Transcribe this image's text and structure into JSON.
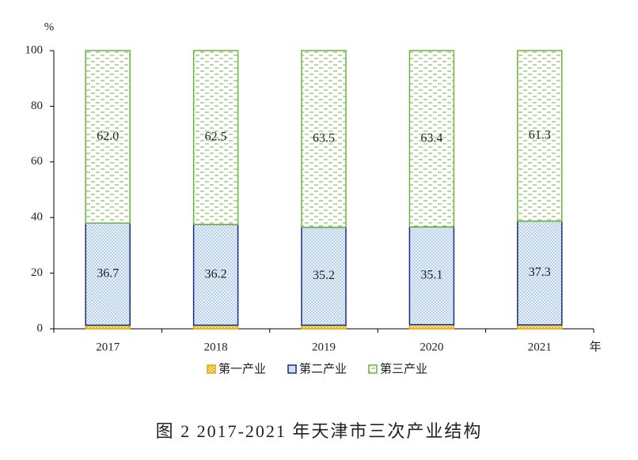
{
  "chart_data": {
    "type": "stacked-bar",
    "title": "图 2 2017-2021 年天津市三次产业结构",
    "y_label": "%",
    "x_label": "年",
    "categories": [
      "2017",
      "2018",
      "2019",
      "2020",
      "2021"
    ],
    "series": [
      {
        "name": "第一产业",
        "color": "#e8a900",
        "values": [
          1.3,
          1.3,
          1.3,
          1.5,
          1.4
        ]
      },
      {
        "name": "第二产业",
        "color": "#1a2a8c",
        "values": [
          36.7,
          36.2,
          35.2,
          35.1,
          37.3
        ],
        "value_labels": [
          "36.7",
          "36.2",
          "35.2",
          "35.1",
          "37.3"
        ]
      },
      {
        "name": "第三产业",
        "color": "#6cb33f",
        "values": [
          62.0,
          62.5,
          63.5,
          63.4,
          61.3
        ],
        "value_labels": [
          "62.0",
          "62.5",
          "63.5",
          "63.4",
          "61.3"
        ]
      }
    ],
    "ylim": [
      0,
      100
    ],
    "yticks": [
      0,
      20,
      40,
      60,
      80,
      100
    ]
  }
}
